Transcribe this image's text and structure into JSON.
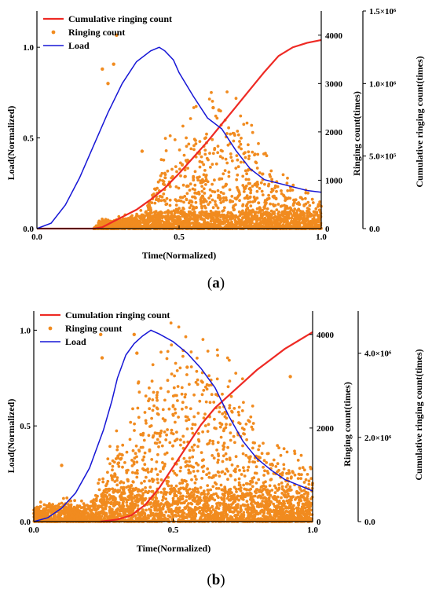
{
  "colors": {
    "cumulative": "#ee2a24",
    "ringing": "#f18b1f",
    "load": "#1616d6",
    "axis": "#000000"
  },
  "panels": [
    {
      "label_letter": "a",
      "label_open": "(",
      "label_close": ")"
    },
    {
      "label_letter": "b",
      "label_open": "(",
      "label_close": ")"
    }
  ],
  "chart_data": [
    {
      "type": "line+scatter",
      "xlabel": "Time(Normalized)",
      "ylabel_left": "Load(Normalized)",
      "ylabel_right1": "Ringing count(times)",
      "ylabel_right2": "Cumulative ringing count(times)",
      "xlim": [
        0,
        1.0
      ],
      "ylim_left": [
        0,
        1.2
      ],
      "ylim_right1": [
        0,
        4500
      ],
      "ylim_right2": [
        0,
        1500000
      ],
      "x_ticks": [
        "0.0",
        "0.5",
        "1.0"
      ],
      "y_left_ticks": [
        "0.0",
        "0.5",
        "1.0"
      ],
      "y_right1_ticks": [
        "0",
        "1000",
        "2000",
        "3000",
        "4000"
      ],
      "y_right2_ticks": [
        "0.0",
        "5.0×10⁵",
        "1.0×10⁶",
        "1.5×10⁶"
      ],
      "grid": false,
      "legend_position": "top-left",
      "series": [
        {
          "name": "Cumulative ringing count",
          "kind": "line",
          "axis": "right2",
          "x": [
            0.0,
            0.1,
            0.2,
            0.23,
            0.26,
            0.3,
            0.35,
            0.4,
            0.45,
            0.5,
            0.55,
            0.6,
            0.65,
            0.7,
            0.75,
            0.8,
            0.85,
            0.9,
            0.95,
            1.0
          ],
          "y": [
            0,
            0,
            0,
            10000,
            40000,
            80000,
            130000,
            200000,
            280000,
            380000,
            490000,
            600000,
            720000,
            840000,
            960000,
            1080000,
            1190000,
            1250000,
            1280000,
            1300000
          ]
        },
        {
          "name": "Ringing count",
          "kind": "scatter",
          "axis": "right1",
          "peaks": [
            {
              "x": 0.23,
              "y": 3300
            },
            {
              "x": 0.25,
              "y": 3000
            },
            {
              "x": 0.27,
              "y": 3400
            },
            {
              "x": 0.28,
              "y": 4000
            },
            {
              "x": 0.37,
              "y": 1600
            },
            {
              "x": 0.62,
              "y": 2500
            },
            {
              "x": 0.64,
              "y": 2450
            }
          ],
          "envelope_x": [
            0.0,
            0.2,
            0.22,
            0.3,
            0.38,
            0.4,
            0.45,
            0.5,
            0.55,
            0.6,
            0.65,
            0.7,
            0.75,
            0.8,
            0.85,
            0.9,
            0.95,
            1.0
          ],
          "envelope_y": [
            0,
            0,
            150,
            200,
            300,
            700,
            1400,
            1600,
            1900,
            2100,
            2200,
            2000,
            1700,
            1200,
            900,
            700,
            600,
            500
          ]
        },
        {
          "name": "Load",
          "kind": "line",
          "axis": "left",
          "x": [
            0.0,
            0.05,
            0.1,
            0.15,
            0.2,
            0.25,
            0.3,
            0.35,
            0.4,
            0.43,
            0.45,
            0.48,
            0.5,
            0.55,
            0.6,
            0.65,
            0.7,
            0.75,
            0.8,
            0.85,
            0.9,
            0.95,
            1.0
          ],
          "y": [
            0.0,
            0.03,
            0.13,
            0.28,
            0.46,
            0.64,
            0.8,
            0.92,
            0.98,
            1.0,
            0.98,
            0.93,
            0.86,
            0.73,
            0.61,
            0.55,
            0.43,
            0.33,
            0.27,
            0.25,
            0.23,
            0.21,
            0.2
          ]
        }
      ]
    },
    {
      "type": "line+scatter",
      "xlabel": "Time(Normalized)",
      "ylabel_left": "Load(Normalized)",
      "ylabel_right1": "Ringing count(times)",
      "ylabel_right2": "Cumulative ringing count(times)",
      "xlim": [
        0,
        1.0
      ],
      "ylim_left": [
        0,
        1.1
      ],
      "ylim_right1": [
        0,
        4500
      ],
      "ylim_right2": [
        0,
        5000000
      ],
      "x_ticks": [
        "0.0",
        "0.5",
        "1.0"
      ],
      "y_left_ticks": [
        "0.0",
        "0.5",
        "1.0"
      ],
      "y_right1_ticks": [
        "0",
        "2000",
        "4000"
      ],
      "y_right2_ticks": [
        "0.0",
        "2.0×10⁶",
        "4.0×10⁶"
      ],
      "grid": false,
      "legend_position": "top-left",
      "series": [
        {
          "name": "Cumulation ringing count",
          "kind": "line",
          "axis": "right2",
          "x": [
            0.24,
            0.3,
            0.35,
            0.4,
            0.45,
            0.5,
            0.55,
            0.6,
            0.65,
            0.7,
            0.75,
            0.8,
            0.85,
            0.9,
            0.95,
            1.0
          ],
          "y": [
            0,
            50000,
            150000,
            400000,
            800000,
            1300000,
            1800000,
            2300000,
            2700000,
            3000000,
            3300000,
            3600000,
            3850000,
            4100000,
            4300000,
            4500000
          ]
        },
        {
          "name": "Ringing count",
          "kind": "scatter",
          "axis": "right1",
          "peaks": [
            {
              "x": 0.1,
              "y": 1200
            },
            {
              "x": 0.24,
              "y": 4000
            },
            {
              "x": 0.245,
              "y": 3500
            },
            {
              "x": 0.36,
              "y": 4000
            },
            {
              "x": 0.37,
              "y": 3600
            },
            {
              "x": 0.92,
              "y": 3100
            },
            {
              "x": 0.55,
              "y": 3300
            }
          ],
          "envelope_x": [
            0.0,
            0.1,
            0.2,
            0.24,
            0.3,
            0.35,
            0.4,
            0.45,
            0.5,
            0.55,
            0.6,
            0.65,
            0.7,
            0.75,
            0.8,
            0.85,
            0.9,
            0.95,
            1.0
          ],
          "envelope_y": [
            300,
            400,
            300,
            800,
            1600,
            2200,
            2600,
            2900,
            3200,
            3300,
            3100,
            3000,
            2800,
            2400,
            1800,
            1400,
            1200,
            1100,
            1000
          ]
        },
        {
          "name": "Load",
          "kind": "line",
          "axis": "left",
          "x": [
            0.0,
            0.05,
            0.1,
            0.15,
            0.2,
            0.25,
            0.28,
            0.3,
            0.33,
            0.36,
            0.39,
            0.42,
            0.45,
            0.5,
            0.55,
            0.6,
            0.65,
            0.7,
            0.75,
            0.8,
            0.85,
            0.9,
            0.95,
            1.0
          ],
          "y": [
            0.0,
            0.02,
            0.07,
            0.15,
            0.28,
            0.48,
            0.63,
            0.75,
            0.87,
            0.93,
            0.97,
            1.0,
            0.98,
            0.94,
            0.88,
            0.8,
            0.7,
            0.55,
            0.42,
            0.33,
            0.27,
            0.22,
            0.19,
            0.16
          ]
        }
      ]
    }
  ]
}
